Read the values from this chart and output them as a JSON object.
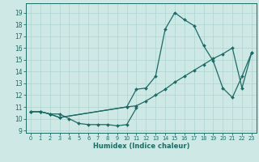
{
  "xlabel": "Humidex (Indice chaleur)",
  "bg_color": "#cde8e5",
  "line_color": "#1e6b65",
  "grid_color": "#afd4d0",
  "xlim": [
    -0.5,
    23.5
  ],
  "ylim": [
    8.8,
    19.8
  ],
  "yticks": [
    9,
    10,
    11,
    12,
    13,
    14,
    15,
    16,
    17,
    18,
    19
  ],
  "xticks": [
    0,
    1,
    2,
    3,
    4,
    5,
    6,
    7,
    8,
    9,
    10,
    11,
    12,
    13,
    14,
    15,
    16,
    17,
    18,
    19,
    20,
    21,
    22,
    23
  ],
  "line1_x": [
    0,
    1,
    2,
    3,
    4,
    5,
    6,
    7,
    8,
    9,
    10,
    11
  ],
  "line1_y": [
    10.6,
    10.6,
    10.4,
    10.4,
    10.0,
    9.6,
    9.5,
    9.5,
    9.5,
    9.4,
    9.5,
    10.9
  ],
  "line2_x": [
    0,
    1,
    2,
    3,
    10,
    11,
    12,
    13,
    14,
    15,
    16,
    17,
    18,
    19,
    20,
    21,
    22,
    23
  ],
  "line2_y": [
    10.6,
    10.6,
    10.4,
    10.1,
    11.0,
    12.5,
    12.6,
    13.6,
    17.6,
    19.0,
    18.4,
    17.9,
    16.2,
    14.9,
    12.6,
    11.8,
    13.6,
    15.6
  ],
  "line3_x": [
    0,
    1,
    2,
    3,
    10,
    11,
    12,
    13,
    14,
    15,
    16,
    17,
    18,
    19,
    20,
    21,
    22,
    23
  ],
  "line3_y": [
    10.6,
    10.6,
    10.4,
    10.1,
    11.0,
    11.1,
    11.5,
    12.0,
    12.5,
    13.1,
    13.6,
    14.1,
    14.6,
    15.1,
    15.5,
    16.0,
    12.6,
    15.6
  ]
}
